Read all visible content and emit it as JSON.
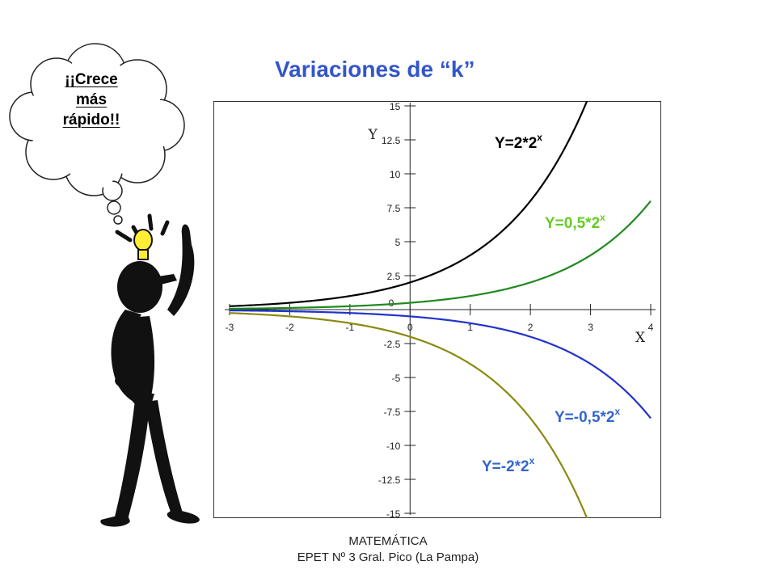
{
  "title": "Variaciones de “k”",
  "thought_bubble": {
    "line1": "¡¡Crece",
    "line2": "más",
    "line3": "rápido!!"
  },
  "footer": {
    "line1": "MATEMÁTICA",
    "line2": "EPET Nº 3 Gral. Pico (La Pampa)"
  },
  "icons": [
    "thought-cloud-icon",
    "stick-figure-icon",
    "light-bulb-icon"
  ],
  "chart_data": {
    "type": "line",
    "title": "",
    "xlabel": "X",
    "ylabel": "Y",
    "xlim": [
      -3,
      4
    ],
    "ylim": [
      -15,
      15
    ],
    "x_ticks": [
      -3,
      -2,
      -1,
      0,
      1,
      2,
      3,
      4
    ],
    "y_ticks": [
      15,
      12.5,
      10,
      7.5,
      5,
      2.5,
      0,
      -2.5,
      -5,
      -7.5,
      -10,
      -12.5,
      -15
    ],
    "y_tick_labels": [
      "15",
      "12.5",
      "10",
      "7.5",
      "5",
      "2.5",
      "0",
      "-2.5",
      "-5",
      "-7.5",
      "-10",
      "-12.5",
      "-15"
    ],
    "grid": false,
    "series": [
      {
        "name": "Y=2*2",
        "exp": "x",
        "k": 2,
        "color": "#000000"
      },
      {
        "name": "Y=0,5*2",
        "exp": "x",
        "k": 0.5,
        "color": "#1f8a1f"
      },
      {
        "name": "Y=-0,5*2",
        "exp": "x",
        "k": -0.5,
        "color": "#2233cc"
      },
      {
        "name": "Y=-2*2",
        "exp": "x",
        "k": -2,
        "color": "#8a8a10"
      }
    ],
    "label_colors": [
      "#000000",
      "#66cc22",
      "#3366cc",
      "#3366cc"
    ]
  }
}
